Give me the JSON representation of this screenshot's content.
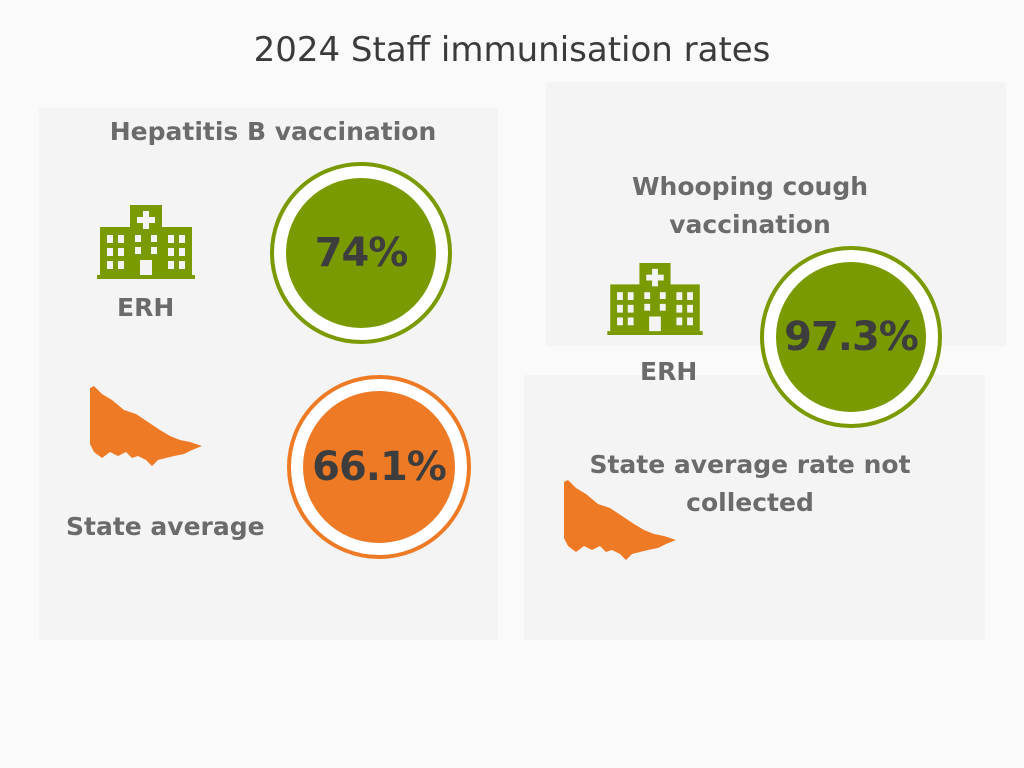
{
  "title": "2024 Staff immunisation rates",
  "colors": {
    "green": "#7a9a01",
    "orange": "#ef7a26",
    "text": "#6b6b6b"
  },
  "hepatitis_b": {
    "heading": "Hepatitis B vaccination",
    "erh": {
      "label": "ERH",
      "value": "74%",
      "icon": "hospital-icon"
    },
    "state": {
      "label": "State average",
      "value": "66.1%",
      "icon": "victoria-map-icon"
    }
  },
  "whooping_cough": {
    "heading_line1": "Whooping cough",
    "heading_line2": "vaccination",
    "erh": {
      "label": "ERH",
      "value": "97.3%",
      "icon": "hospital-icon"
    },
    "state": {
      "note_line1": "State average rate not",
      "note_line2": "collected",
      "icon": "victoria-map-icon"
    }
  }
}
